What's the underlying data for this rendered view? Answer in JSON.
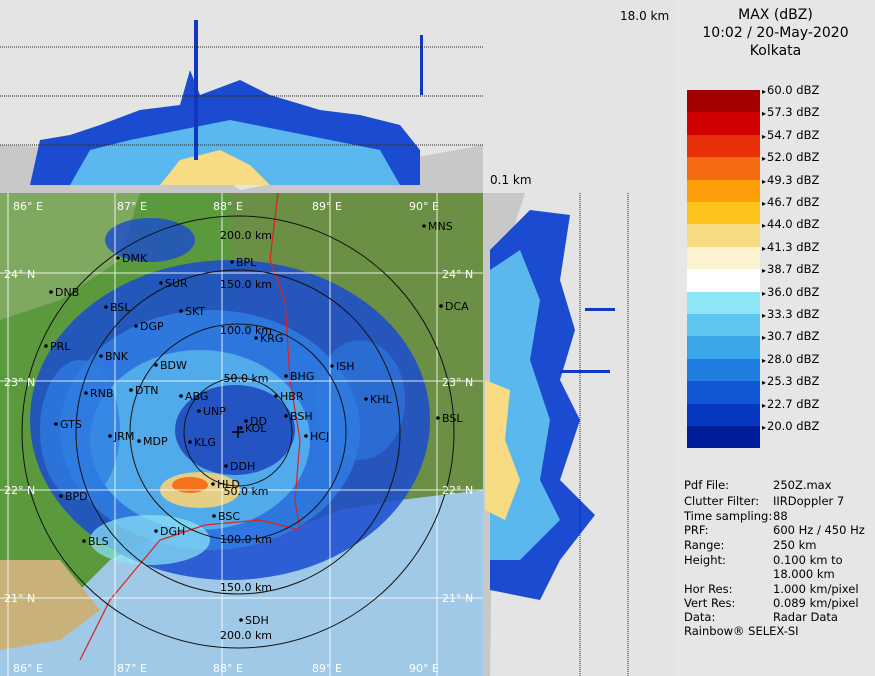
{
  "header": {
    "product": "MAX (dBZ)",
    "datetime": "10:02 / 20-May-2020",
    "station": "Kolkata"
  },
  "section_labels": {
    "top_height": "18.0 km",
    "bottom_height": "0.1 km"
  },
  "legend": {
    "levels": [
      "60.0 dBZ",
      "57.3 dBZ",
      "54.7 dBZ",
      "52.0 dBZ",
      "49.3 dBZ",
      "46.7 dBZ",
      "44.0 dBZ",
      "41.3 dBZ",
      "38.7 dBZ",
      "36.0 dBZ",
      "33.3 dBZ",
      "30.7 dBZ",
      "28.0 dBZ",
      "25.3 dBZ",
      "22.7 dBZ",
      "20.0 dBZ"
    ],
    "colors": [
      "#a40000",
      "#d10000",
      "#e8300a",
      "#f46a10",
      "#fb9e08",
      "#fcc31a",
      "#f7dc84",
      "#fbf2cf",
      "#ffffff",
      "#8de6f6",
      "#5cc6f0",
      "#3aa6ea",
      "#207ee0",
      "#1258d6",
      "#0838c2",
      "#001e99"
    ]
  },
  "info": [
    {
      "key": "Pdf File:",
      "value": "250Z.max"
    },
    {
      "key": "Clutter Filter:",
      "value": "IIRDoppler 7"
    },
    {
      "key": "Time sampling:",
      "value": "88"
    },
    {
      "key": "PRF:",
      "value": "600 Hz / 450 Hz"
    },
    {
      "key": "Range:",
      "value": "250 km"
    },
    {
      "key": "Height:",
      "value": "0.100 km to"
    },
    {
      "key": "",
      "value": "18.000 km"
    },
    {
      "key": "Hor Res:",
      "value": "1.000 km/pixel"
    },
    {
      "key": "Vert Res:",
      "value": "0.089 km/pixel"
    },
    {
      "key": "Data:",
      "value": "Radar Data"
    }
  ],
  "footer": "Rainbow® SELEX-SI",
  "axes": {
    "lon_top": [
      "86° E",
      "87° E",
      "88° E",
      "89° E",
      "90° E"
    ],
    "lon_bottom": [
      "86° E",
      "87° E",
      "88° E",
      "89° E",
      "90° E"
    ],
    "lat_left": [
      "24° N",
      "23° N",
      "22° N",
      "21° N"
    ],
    "lat_right": [
      "24° N",
      "23° N",
      "22° N",
      "21° N"
    ]
  },
  "range_rings": [
    "50.0 km",
    "100.0 km",
    "150.0 km",
    "200.0 km"
  ],
  "range_rings_north": [
    "50.0 km",
    "100.0 km",
    "150.0 km",
    "200.0 km"
  ],
  "stations": [
    "MNS",
    "DMK",
    "BPL",
    "DNB",
    "SUR",
    "BSL",
    "SKT",
    "DCA",
    "DGP",
    "KRG",
    "PRL",
    "BNK",
    "BDW",
    "ISH",
    "BHG",
    "ABG",
    "HBR",
    "DTN",
    "RNB",
    "KHL",
    "UNP",
    "BSH",
    "GTS",
    "DD",
    "HCJ",
    "JRM",
    "KOL",
    "BSL",
    "MDP",
    "KLG",
    "DDH",
    "HLD",
    "BPD",
    "BSC",
    "DGH",
    "BLS",
    "SDH"
  ]
}
